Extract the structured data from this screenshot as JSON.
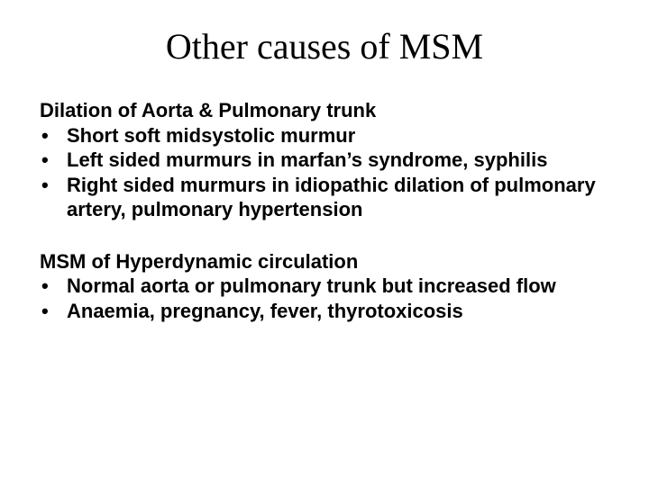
{
  "title": "Other causes of MSM",
  "section1": {
    "heading": "Dilation of Aorta & Pulmonary trunk",
    "bullets": [
      "Short soft midsystolic murmur",
      "Left sided murmurs in marfan’s syndrome, syphilis",
      "Right sided murmurs in idiopathic dilation of pulmonary artery, pulmonary hypertension"
    ]
  },
  "section2": {
    "heading": "MSM of Hyperdynamic circulation",
    "bullets": [
      "Normal aorta or pulmonary trunk but increased flow",
      "Anaemia, pregnancy, fever, thyrotoxicosis"
    ]
  },
  "colors": {
    "background": "#ffffff",
    "text": "#000000"
  },
  "typography": {
    "title_font": "Times New Roman",
    "title_size_pt": 40,
    "body_font": "Arial",
    "body_size_pt": 22,
    "body_weight": 700
  }
}
